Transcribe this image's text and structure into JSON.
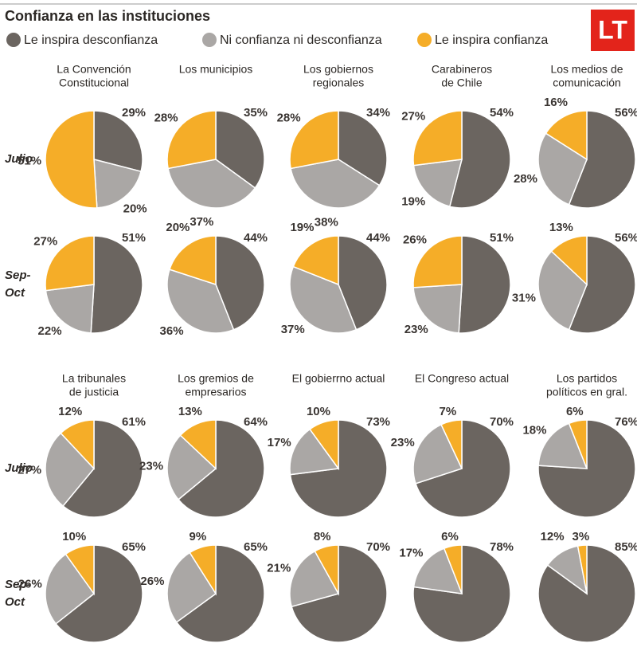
{
  "title": "Confianza en las instituciones",
  "logo": "LT",
  "legend": {
    "labels": [
      "Le inspira desconfianza",
      "Ni confianza ni desconfianza",
      "Le inspira confianza"
    ],
    "colors": [
      "#6b6560",
      "#aaa7a5",
      "#f5ad28"
    ]
  },
  "periods": [
    [
      "Julio"
    ],
    [
      "Sep-",
      "Oct"
    ]
  ],
  "chart_data": [
    {
      "type": "pie",
      "title": [
        "La Convención",
        "Constitucional"
      ],
      "series": [
        {
          "values": [
            29,
            20,
            51
          ],
          "value_labels": [
            "29%",
            "20%",
            "51%"
          ]
        },
        {
          "values": [
            51,
            22,
            27
          ],
          "value_labels": [
            "51%",
            "22%",
            "27%"
          ]
        }
      ]
    },
    {
      "type": "pie",
      "title": [
        "Los municipios"
      ],
      "series": [
        {
          "values": [
            35,
            37,
            28
          ],
          "value_labels": [
            "35%",
            "37%",
            "28%"
          ]
        },
        {
          "values": [
            44,
            36,
            20
          ],
          "value_labels": [
            "44%",
            "36%",
            "20%"
          ]
        }
      ]
    },
    {
      "type": "pie",
      "title": [
        "Los gobiernos",
        "regionales"
      ],
      "series": [
        {
          "values": [
            34,
            38,
            28
          ],
          "value_labels": [
            "34%",
            "38%",
            "28%"
          ]
        },
        {
          "values": [
            44,
            37,
            19
          ],
          "value_labels": [
            "44%",
            "37%",
            "19%"
          ]
        }
      ]
    },
    {
      "type": "pie",
      "title": [
        "Carabineros",
        "de Chile"
      ],
      "series": [
        {
          "values": [
            54,
            19,
            27
          ],
          "value_labels": [
            "54%",
            "19%",
            "27%"
          ]
        },
        {
          "values": [
            51,
            23,
            26
          ],
          "value_labels": [
            "51%",
            "23%",
            "26%"
          ]
        }
      ]
    },
    {
      "type": "pie",
      "title": [
        "Los medios de",
        "comunicación"
      ],
      "series": [
        {
          "values": [
            56,
            28,
            16
          ],
          "value_labels": [
            "56%",
            "28%",
            "16%"
          ]
        },
        {
          "values": [
            56,
            31,
            13
          ],
          "value_labels": [
            "56%",
            "31%",
            "13%"
          ]
        }
      ]
    },
    {
      "type": "pie",
      "title": [
        "La tribunales",
        "de justicia"
      ],
      "series": [
        {
          "values": [
            61,
            27,
            12
          ],
          "value_labels": [
            "61%",
            "27%",
            "12%"
          ]
        },
        {
          "values": [
            65,
            26,
            10
          ],
          "value_labels": [
            "65%",
            "26%",
            "10%"
          ]
        }
      ]
    },
    {
      "type": "pie",
      "title": [
        "Los gremios de",
        "empresarios"
      ],
      "series": [
        {
          "values": [
            64,
            23,
            13
          ],
          "value_labels": [
            "64%",
            "23%",
            "13%"
          ]
        },
        {
          "values": [
            65,
            26,
            9
          ],
          "value_labels": [
            "65%",
            "26%",
            "9%"
          ]
        }
      ]
    },
    {
      "type": "pie",
      "title": [
        "El gobierrno actual"
      ],
      "series": [
        {
          "values": [
            73,
            17,
            10
          ],
          "value_labels": [
            "73%",
            "17%",
            "10%"
          ]
        },
        {
          "values": [
            70,
            21,
            8
          ],
          "value_labels": [
            "70%",
            "21%",
            "8%"
          ]
        }
      ]
    },
    {
      "type": "pie",
      "title": [
        "El Congreso actual"
      ],
      "series": [
        {
          "values": [
            70,
            23,
            7
          ],
          "value_labels": [
            "70%",
            "23%",
            "7%"
          ]
        },
        {
          "values": [
            78,
            17,
            6
          ],
          "value_labels": [
            "78%",
            "17%",
            "6%"
          ]
        }
      ]
    },
    {
      "type": "pie",
      "title": [
        "Los partidos",
        "políticos en gral."
      ],
      "series": [
        {
          "values": [
            76,
            18,
            6
          ],
          "value_labels": [
            "76%",
            "18%",
            "6%"
          ]
        },
        {
          "values": [
            85,
            12,
            3
          ],
          "value_labels": [
            "85%",
            "12%",
            "3%"
          ]
        }
      ]
    }
  ]
}
